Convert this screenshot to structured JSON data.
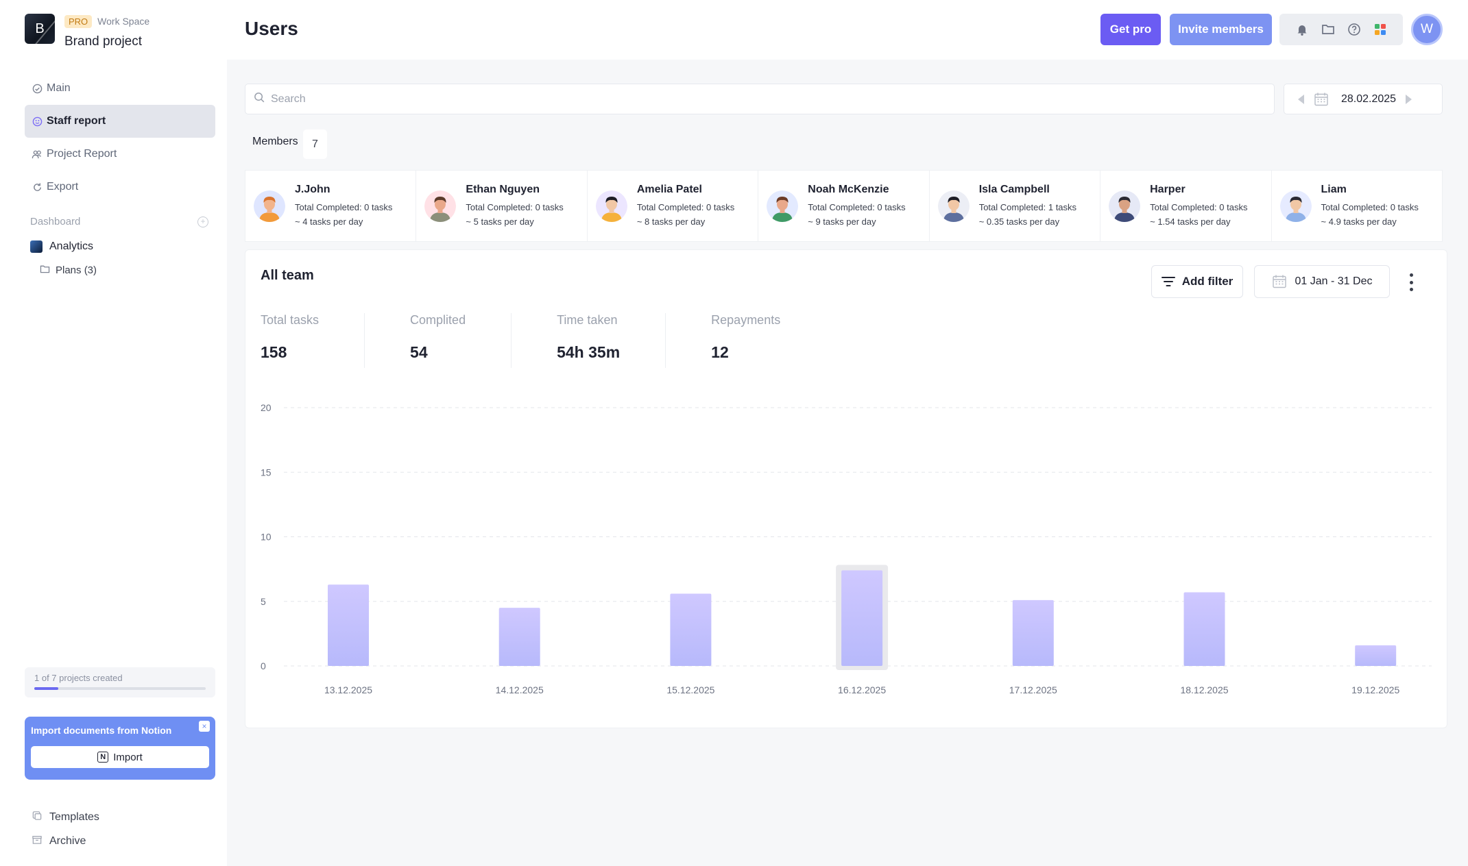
{
  "sidebar": {
    "logo_letter": "B",
    "pro_badge": "PRO",
    "workspace": "Work Space",
    "project_name": "Brand project",
    "nav": [
      {
        "label": "Main",
        "icon": "check-circle-icon"
      },
      {
        "label": "Staff report",
        "icon": "smile-icon",
        "active": true
      },
      {
        "label": "Project Report",
        "icon": "people-icon"
      },
      {
        "label": "Export",
        "icon": "refresh-icon"
      }
    ],
    "dashboard_label": "Dashboard",
    "analytics_label": "Analytics",
    "plans_label": "Plans (3)",
    "quota_text": "1 of 7 projects created",
    "quota_fraction": 0.14,
    "notion_title": "Import documents from Notion",
    "notion_close": "×",
    "notion_icon_letter": "N",
    "import_label": "Import",
    "templates_label": "Templates",
    "archive_label": "Archive"
  },
  "header": {
    "title": "Users",
    "get_pro": "Get pro",
    "invite": "Invite members",
    "avatar_letter": "W"
  },
  "search": {
    "placeholder": "Search"
  },
  "date_nav": {
    "date": "28.02.2025"
  },
  "members": {
    "label": "Members",
    "count": "7",
    "list": [
      {
        "name": "J.John",
        "completed": "Total Completed: 0 tasks",
        "rate": "~ 4 tasks per day",
        "skin": "#f2b48c",
        "hair": "#d9732e",
        "shirt": "#f29a3a",
        "bg": "#dfe6ff"
      },
      {
        "name": "Ethan Nguyen",
        "completed": "Total Completed: 0 tasks",
        "rate": "~ 5 tasks per day",
        "skin": "#e9a88a",
        "hair": "#5a3a2a",
        "shirt": "#8b8f7a",
        "bg": "#ffe1e6"
      },
      {
        "name": "Amelia Patel",
        "completed": "Total Completed: 0 tasks",
        "rate": "~ 8 tasks per day",
        "skin": "#f1c7a5",
        "hair": "#1d1d26",
        "shirt": "#f5b13b",
        "bg": "#ece6ff"
      },
      {
        "name": "Noah McKenzie",
        "completed": "Total Completed: 0 tasks",
        "rate": "~ 9 tasks per day",
        "skin": "#e9a88a",
        "hair": "#6b3b27",
        "shirt": "#3f9a66",
        "bg": "#e3eaff"
      },
      {
        "name": "Isla Campbell",
        "completed": "Total Completed: 1 tasks",
        "rate": "~ 0.35 tasks per day",
        "skin": "#f1c7a5",
        "hair": "#1d1d26",
        "shirt": "#5d6f9e",
        "bg": "#eceef5"
      },
      {
        "name": "Harper",
        "completed": "Total Completed: 0 tasks",
        "rate": "~ 1.54 tasks per day",
        "skin": "#d9a283",
        "hair": "#2a2a33",
        "shirt": "#3e4b78",
        "bg": "#e6e9f6"
      },
      {
        "name": "Liam",
        "completed": "Total Completed: 0 tasks",
        "rate": "~ 4.9 tasks per day",
        "skin": "#f1c7a5",
        "hair": "#2a2a33",
        "shirt": "#8fb1e8",
        "bg": "#e6ebff"
      }
    ]
  },
  "team": {
    "title": "All team",
    "add_filter": "Add filter",
    "range": "01 Jan - 31 Dec",
    "stats": [
      {
        "label": "Total tasks",
        "value": "158"
      },
      {
        "label": "Complited",
        "value": "54"
      },
      {
        "label": "Time taken",
        "value": "54h 35m"
      },
      {
        "label": "Repayments",
        "value": "12"
      }
    ]
  },
  "colors": {
    "accent": "#6b5cf3",
    "invite": "#7d93f2",
    "bar_top": "#cfc8ff",
    "bar_bottom": "#b7b9fb",
    "highlight": "#e9e9ec"
  },
  "chart_data": {
    "type": "bar",
    "categories": [
      "13.12.2025",
      "14.12.2025",
      "15.12.2025",
      "16.12.2025",
      "17.12.2025",
      "18.12.2025",
      "19.12.2025"
    ],
    "values": [
      6.3,
      4.5,
      5.6,
      7.4,
      5.1,
      5.7,
      1.6
    ],
    "yticks": [
      0,
      5,
      10,
      15,
      20
    ],
    "ylim": [
      0,
      20
    ],
    "highlighted_category": "16.12.2025",
    "grid": true
  }
}
